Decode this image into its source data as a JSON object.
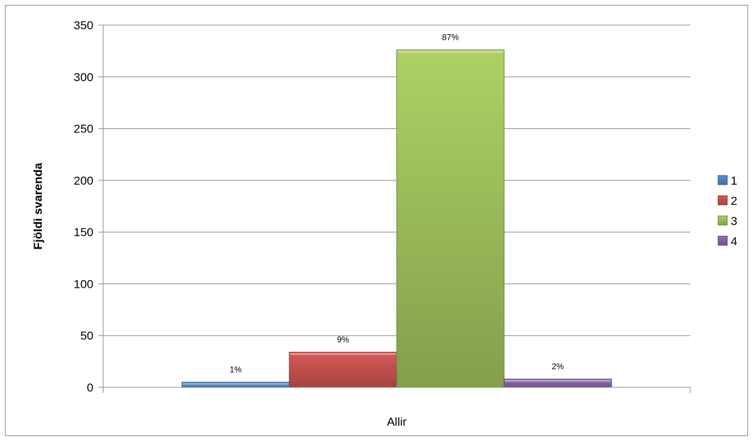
{
  "chart_data": {
    "type": "bar",
    "categories": [
      "Allir"
    ],
    "ylabel": "Fjöldi svarenda",
    "xlabel": "",
    "ylim": [
      0,
      350
    ],
    "yticks": [
      0,
      50,
      100,
      150,
      200,
      250,
      300,
      350
    ],
    "grid": true,
    "legend_position": "right",
    "series": [
      {
        "name": "1",
        "values": [
          5
        ],
        "label": "1%",
        "color": "#4f81bd"
      },
      {
        "name": "2",
        "values": [
          34
        ],
        "label": "9%",
        "color": "#c0504d"
      },
      {
        "name": "3",
        "values": [
          326
        ],
        "label": "87%",
        "color": "#9bbb59"
      },
      {
        "name": "4",
        "values": [
          8
        ],
        "label": "2%",
        "color": "#8064a2"
      }
    ]
  }
}
